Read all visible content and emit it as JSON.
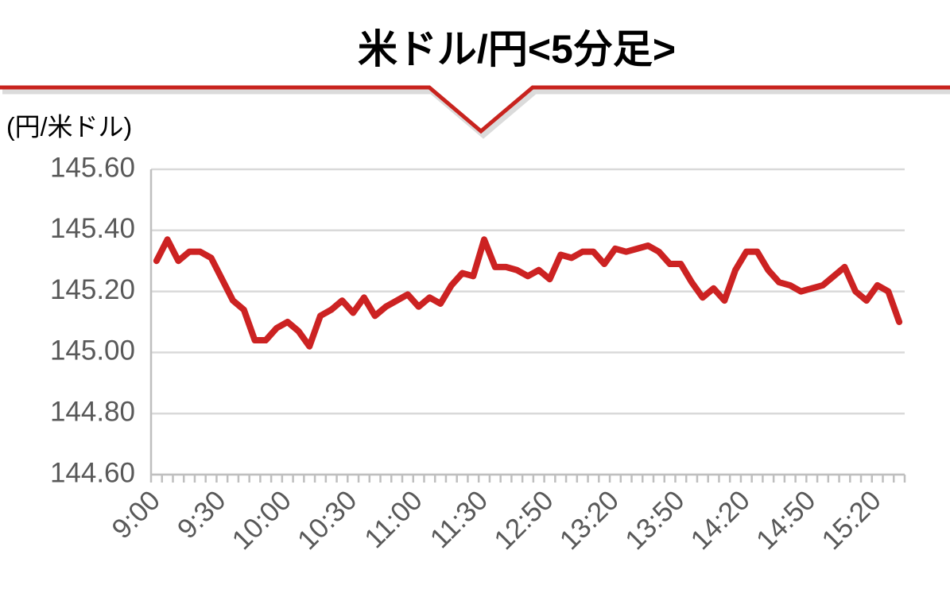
{
  "chart_data": {
    "type": "line",
    "title": "米ドル/円<5分足>",
    "y_label": "(円/米ドル)",
    "categories": [
      "9:00",
      null,
      null,
      null,
      null,
      null,
      "9:30",
      null,
      null,
      null,
      null,
      null,
      "10:00",
      null,
      null,
      null,
      null,
      null,
      "10:30",
      null,
      null,
      null,
      null,
      null,
      "11:00",
      null,
      null,
      null,
      null,
      null,
      "11:30",
      null,
      null,
      null,
      null,
      null,
      "12:50",
      null,
      null,
      null,
      null,
      null,
      "13:20",
      null,
      null,
      null,
      null,
      null,
      "13:50",
      null,
      null,
      null,
      null,
      null,
      "14:20",
      null,
      null,
      null,
      null,
      null,
      "14:50",
      null,
      null,
      null,
      null,
      null,
      "15:20",
      null,
      null
    ],
    "values": [
      145.3,
      145.37,
      145.3,
      145.33,
      145.33,
      145.31,
      145.24,
      145.17,
      145.14,
      145.04,
      145.04,
      145.08,
      145.1,
      145.07,
      145.02,
      145.12,
      145.14,
      145.17,
      145.13,
      145.18,
      145.12,
      145.15,
      145.17,
      145.19,
      145.15,
      145.18,
      145.16,
      145.22,
      145.26,
      145.25,
      145.37,
      145.28,
      145.28,
      145.27,
      145.25,
      145.27,
      145.24,
      145.32,
      145.31,
      145.33,
      145.33,
      145.29,
      145.34,
      145.33,
      145.34,
      145.35,
      145.33,
      145.29,
      145.29,
      145.23,
      145.18,
      145.21,
      145.17,
      145.27,
      145.33,
      145.33,
      145.27,
      145.23,
      145.22,
      145.2,
      145.21,
      145.22,
      145.25,
      145.28,
      145.2,
      145.17,
      145.22,
      145.2,
      145.1
    ],
    "color": "#cc2222",
    "ylim": [
      144.6,
      145.6
    ],
    "yticks": [
      {
        "value": 144.6,
        "label": "144.60"
      },
      {
        "value": 144.8,
        "label": "144.80"
      },
      {
        "value": 145.0,
        "label": "145.00"
      },
      {
        "value": 145.2,
        "label": "145.20"
      },
      {
        "value": 145.4,
        "label": "145.40"
      },
      {
        "value": 145.6,
        "label": "145.60"
      }
    ],
    "grid": true
  }
}
